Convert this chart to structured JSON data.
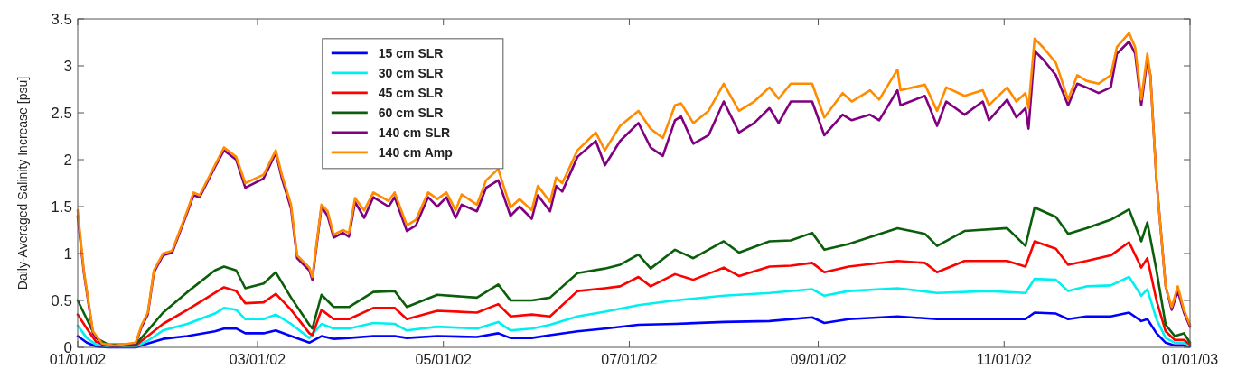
{
  "chart_data": {
    "type": "line",
    "ylabel": "Daily-Averaged Salinity Increase [psu]",
    "xlim": [
      "2002-01-01",
      "2003-01-01"
    ],
    "xticks": [
      {
        "value": "2002-01-01",
        "label": "01/01/02"
      },
      {
        "value": "2002-03-01",
        "label": "03/01/02"
      },
      {
        "value": "2002-05-01",
        "label": "05/01/02"
      },
      {
        "value": "2002-07-01",
        "label": "07/01/02"
      },
      {
        "value": "2002-09-01",
        "label": "09/01/02"
      },
      {
        "value": "2002-11-01",
        "label": "11/01/02"
      },
      {
        "value": "2003-01-01",
        "label": "01/01/03"
      }
    ],
    "ylim": [
      0,
      3.5
    ],
    "yticks": [
      0,
      0.5,
      1,
      1.5,
      2,
      2.5,
      3,
      3.5
    ],
    "grid": false,
    "legend": "top left",
    "marker": "none",
    "line_style": "solid",
    "x": [
      "2002-01-01",
      "2002-01-03",
      "2002-01-06",
      "2002-01-09",
      "2002-01-13",
      "2002-01-20",
      "2002-01-22",
      "2002-01-24",
      "2002-01-26",
      "2002-01-29",
      "2002-02-01",
      "2002-02-06",
      "2002-02-08",
      "2002-02-10",
      "2002-02-15",
      "2002-02-18",
      "2002-02-22",
      "2002-02-25",
      "2002-03-03",
      "2002-03-07",
      "2002-03-09",
      "2002-03-12",
      "2002-03-14",
      "2002-03-18",
      "2002-03-19",
      "2002-03-22",
      "2002-03-24",
      "2002-03-26",
      "2002-03-29",
      "2002-03-31",
      "2002-04-02",
      "2002-04-05",
      "2002-04-08",
      "2002-04-13",
      "2002-04-15",
      "2002-04-19",
      "2002-04-22",
      "2002-04-26",
      "2002-04-29",
      "2002-05-02",
      "2002-05-05",
      "2002-05-07",
      "2002-05-12",
      "2002-05-15",
      "2002-05-19",
      "2002-05-23",
      "2002-05-26",
      "2002-05-30",
      "2002-06-01",
      "2002-06-05",
      "2002-06-07",
      "2002-06-09",
      "2002-06-14",
      "2002-06-20",
      "2002-06-23",
      "2002-06-28",
      "2002-07-04",
      "2002-07-08",
      "2002-07-12",
      "2002-07-16",
      "2002-07-18",
      "2002-07-22",
      "2002-07-27",
      "2002-08-01",
      "2002-08-06",
      "2002-08-11",
      "2002-08-16",
      "2002-08-19",
      "2002-08-23",
      "2002-08-30",
      "2002-09-03",
      "2002-09-09",
      "2002-09-12",
      "2002-09-18",
      "2002-09-21",
      "2002-09-27",
      "2002-09-28",
      "2002-10-06",
      "2002-10-10",
      "2002-10-13",
      "2002-10-19",
      "2002-10-25",
      "2002-10-27",
      "2002-11-02",
      "2002-11-05",
      "2002-11-08",
      "2002-11-09",
      "2002-11-11",
      "2002-11-14",
      "2002-11-18",
      "2002-11-22",
      "2002-11-25",
      "2002-11-28",
      "2002-12-02",
      "2002-12-06",
      "2002-12-08",
      "2002-12-12",
      "2002-12-14",
      "2002-12-16",
      "2002-12-18",
      "2002-12-19",
      "2002-12-21",
      "2002-12-24",
      "2002-12-26",
      "2002-12-28",
      "2002-12-30",
      "2003-01-01"
    ],
    "series": [
      {
        "name": "15 cm SLR",
        "color": "#0000ff",
        "x": [
          "2002-01-01",
          "2002-01-04",
          "2002-01-07",
          "2002-01-11",
          "2002-01-20",
          "2002-01-24",
          "2002-01-29",
          "2002-02-06",
          "2002-02-15",
          "2002-02-18",
          "2002-02-22",
          "2002-02-25",
          "2002-03-03",
          "2002-03-07",
          "2002-03-12",
          "2002-03-18",
          "2002-03-22",
          "2002-03-26",
          "2002-03-31",
          "2002-04-08",
          "2002-04-15",
          "2002-04-19",
          "2002-04-29",
          "2002-05-12",
          "2002-05-19",
          "2002-05-23",
          "2002-05-30",
          "2002-06-05",
          "2002-06-14",
          "2002-06-23",
          "2002-07-04",
          "2002-07-16",
          "2002-08-01",
          "2002-08-16",
          "2002-08-30",
          "2002-09-03",
          "2002-09-11",
          "2002-09-27",
          "2002-10-10",
          "2002-10-27",
          "2002-11-08",
          "2002-11-11",
          "2002-11-18",
          "2002-11-22",
          "2002-11-28",
          "2002-12-06",
          "2002-12-12",
          "2002-12-16",
          "2002-12-18",
          "2002-12-21",
          "2002-12-24",
          "2002-12-27",
          "2002-12-30",
          "2003-01-01"
        ],
        "values": [
          0.12,
          0.05,
          0.01,
          0,
          0,
          0.04,
          0.09,
          0.12,
          0.17,
          0.2,
          0.2,
          0.15,
          0.15,
          0.18,
          0.12,
          0.05,
          0.12,
          0.09,
          0.1,
          0.12,
          0.12,
          0.1,
          0.12,
          0.11,
          0.15,
          0.1,
          0.1,
          0.13,
          0.17,
          0.2,
          0.24,
          0.25,
          0.27,
          0.28,
          0.32,
          0.26,
          0.3,
          0.33,
          0.3,
          0.3,
          0.3,
          0.37,
          0.36,
          0.3,
          0.33,
          0.33,
          0.37,
          0.28,
          0.3,
          0.15,
          0.05,
          0.02,
          0.02,
          0.01
        ]
      },
      {
        "name": "30 cm SLR",
        "color": "#00f0f0",
        "x": [
          "2002-01-01",
          "2002-01-04",
          "2002-01-07",
          "2002-01-11",
          "2002-01-20",
          "2002-01-24",
          "2002-01-29",
          "2002-02-06",
          "2002-02-15",
          "2002-02-18",
          "2002-02-22",
          "2002-02-25",
          "2002-03-03",
          "2002-03-07",
          "2002-03-12",
          "2002-03-18",
          "2002-03-22",
          "2002-03-26",
          "2002-03-31",
          "2002-04-08",
          "2002-04-15",
          "2002-04-19",
          "2002-04-29",
          "2002-05-12",
          "2002-05-19",
          "2002-05-23",
          "2002-05-30",
          "2002-06-05",
          "2002-06-14",
          "2002-06-23",
          "2002-07-04",
          "2002-07-16",
          "2002-08-01",
          "2002-08-16",
          "2002-08-30",
          "2002-09-03",
          "2002-09-11",
          "2002-09-27",
          "2002-10-10",
          "2002-10-27",
          "2002-11-08",
          "2002-11-11",
          "2002-11-18",
          "2002-11-22",
          "2002-11-28",
          "2002-12-06",
          "2002-12-12",
          "2002-12-16",
          "2002-12-18",
          "2002-12-21",
          "2002-12-24",
          "2002-12-27",
          "2002-12-30",
          "2003-01-01"
        ],
        "values": [
          0.23,
          0.1,
          0.03,
          0.01,
          0.01,
          0.07,
          0.18,
          0.25,
          0.36,
          0.42,
          0.4,
          0.3,
          0.3,
          0.35,
          0.25,
          0.1,
          0.25,
          0.2,
          0.2,
          0.26,
          0.25,
          0.18,
          0.22,
          0.2,
          0.27,
          0.18,
          0.2,
          0.24,
          0.33,
          0.38,
          0.45,
          0.5,
          0.55,
          0.58,
          0.62,
          0.55,
          0.6,
          0.63,
          0.58,
          0.6,
          0.58,
          0.73,
          0.72,
          0.6,
          0.65,
          0.66,
          0.75,
          0.55,
          0.62,
          0.3,
          0.1,
          0.05,
          0.05,
          0.02
        ]
      },
      {
        "name": "45 cm SLR",
        "color": "#ff0000",
        "x": [
          "2002-01-01",
          "2002-01-04",
          "2002-01-07",
          "2002-01-11",
          "2002-01-20",
          "2002-01-24",
          "2002-01-29",
          "2002-02-06",
          "2002-02-15",
          "2002-02-18",
          "2002-02-22",
          "2002-02-25",
          "2002-03-03",
          "2002-03-07",
          "2002-03-12",
          "2002-03-18",
          "2002-03-19",
          "2002-03-22",
          "2002-03-26",
          "2002-03-31",
          "2002-04-08",
          "2002-04-15",
          "2002-04-19",
          "2002-04-29",
          "2002-05-12",
          "2002-05-19",
          "2002-05-23",
          "2002-05-30",
          "2002-06-05",
          "2002-06-14",
          "2002-06-23",
          "2002-06-28",
          "2002-07-04",
          "2002-07-08",
          "2002-07-16",
          "2002-07-22",
          "2002-08-01",
          "2002-08-06",
          "2002-08-16",
          "2002-08-23",
          "2002-08-30",
          "2002-09-03",
          "2002-09-11",
          "2002-09-27",
          "2002-10-06",
          "2002-10-10",
          "2002-10-19",
          "2002-11-02",
          "2002-11-08",
          "2002-11-11",
          "2002-11-18",
          "2002-11-22",
          "2002-11-28",
          "2002-12-06",
          "2002-12-12",
          "2002-12-16",
          "2002-12-18",
          "2002-12-21",
          "2002-12-24",
          "2002-12-27",
          "2002-12-30",
          "2003-01-01"
        ],
        "values": [
          0.35,
          0.2,
          0.06,
          0.02,
          0.02,
          0.12,
          0.25,
          0.4,
          0.58,
          0.64,
          0.6,
          0.47,
          0.48,
          0.57,
          0.4,
          0.15,
          0.13,
          0.4,
          0.3,
          0.3,
          0.42,
          0.42,
          0.3,
          0.39,
          0.37,
          0.46,
          0.33,
          0.35,
          0.33,
          0.6,
          0.63,
          0.65,
          0.75,
          0.65,
          0.78,
          0.72,
          0.85,
          0.76,
          0.86,
          0.87,
          0.9,
          0.8,
          0.86,
          0.92,
          0.9,
          0.8,
          0.92,
          0.92,
          0.86,
          1.13,
          1.05,
          0.88,
          0.92,
          0.98,
          1.12,
          0.85,
          0.95,
          0.5,
          0.17,
          0.08,
          0.08,
          0.03
        ]
      },
      {
        "name": "60 cm SLR",
        "color": "#0b5e0b",
        "x": [
          "2002-01-01",
          "2002-01-04",
          "2002-01-07",
          "2002-01-11",
          "2002-01-20",
          "2002-01-24",
          "2002-01-29",
          "2002-02-06",
          "2002-02-15",
          "2002-02-18",
          "2002-02-22",
          "2002-02-25",
          "2002-03-03",
          "2002-03-07",
          "2002-03-12",
          "2002-03-18",
          "2002-03-19",
          "2002-03-22",
          "2002-03-26",
          "2002-03-31",
          "2002-04-08",
          "2002-04-15",
          "2002-04-19",
          "2002-04-29",
          "2002-05-12",
          "2002-05-19",
          "2002-05-23",
          "2002-05-30",
          "2002-06-05",
          "2002-06-14",
          "2002-06-23",
          "2002-06-28",
          "2002-07-04",
          "2002-07-08",
          "2002-07-16",
          "2002-07-22",
          "2002-08-01",
          "2002-08-06",
          "2002-08-16",
          "2002-08-23",
          "2002-08-30",
          "2002-09-03",
          "2002-09-11",
          "2002-09-27",
          "2002-10-06",
          "2002-10-10",
          "2002-10-19",
          "2002-11-02",
          "2002-11-08",
          "2002-11-11",
          "2002-11-18",
          "2002-11-22",
          "2002-11-28",
          "2002-12-06",
          "2002-12-12",
          "2002-12-16",
          "2002-12-18",
          "2002-12-21",
          "2002-12-24",
          "2002-12-27",
          "2002-12-30",
          "2003-01-01"
        ],
        "values": [
          0.5,
          0.3,
          0.1,
          0.03,
          0.03,
          0.18,
          0.37,
          0.59,
          0.82,
          0.86,
          0.82,
          0.63,
          0.68,
          0.8,
          0.53,
          0.24,
          0.2,
          0.56,
          0.43,
          0.43,
          0.59,
          0.6,
          0.43,
          0.56,
          0.53,
          0.67,
          0.5,
          0.5,
          0.53,
          0.79,
          0.84,
          0.88,
          0.99,
          0.84,
          1.04,
          0.95,
          1.13,
          1.01,
          1.13,
          1.14,
          1.22,
          1.04,
          1.1,
          1.27,
          1.21,
          1.08,
          1.24,
          1.27,
          1.08,
          1.49,
          1.39,
          1.21,
          1.27,
          1.36,
          1.47,
          1.13,
          1.33,
          0.82,
          0.24,
          0.12,
          0.15,
          0.05
        ]
      },
      {
        "name": "140 cm SLR",
        "color": "#800080",
        "values": [
          1.4,
          0.8,
          0.15,
          0.03,
          0.01,
          0.04,
          0.22,
          0.35,
          0.8,
          0.98,
          1.01,
          1.44,
          1.62,
          1.6,
          1.92,
          2.1,
          2.0,
          1.7,
          1.8,
          2.07,
          1.8,
          1.48,
          0.95,
          0.82,
          0.72,
          1.5,
          1.4,
          1.17,
          1.22,
          1.18,
          1.55,
          1.38,
          1.6,
          1.5,
          1.6,
          1.24,
          1.3,
          1.6,
          1.5,
          1.6,
          1.38,
          1.52,
          1.45,
          1.7,
          1.78,
          1.4,
          1.5,
          1.37,
          1.62,
          1.45,
          1.72,
          1.66,
          2.03,
          2.2,
          1.94,
          2.2,
          2.39,
          2.13,
          2.04,
          2.42,
          2.46,
          2.17,
          2.26,
          2.62,
          2.29,
          2.39,
          2.55,
          2.39,
          2.62,
          2.62,
          2.26,
          2.48,
          2.42,
          2.48,
          2.42,
          2.74,
          2.58,
          2.68,
          2.36,
          2.62,
          2.48,
          2.62,
          2.42,
          2.64,
          2.45,
          2.55,
          2.33,
          3.16,
          3.06,
          2.9,
          2.58,
          2.81,
          2.77,
          2.71,
          2.77,
          3.13,
          3.26,
          3.13,
          2.58,
          3.07,
          2.9,
          1.78,
          0.65,
          0.4,
          0.6,
          0.37,
          0.22
        ]
      },
      {
        "name": "140 cm Amp",
        "color": "#ff8c00",
        "values": [
          1.46,
          0.82,
          0.17,
          0.04,
          0.02,
          0.05,
          0.24,
          0.37,
          0.82,
          1.0,
          1.03,
          1.46,
          1.65,
          1.62,
          1.94,
          2.13,
          2.03,
          1.75,
          1.84,
          2.1,
          1.84,
          1.52,
          0.98,
          0.85,
          0.75,
          1.52,
          1.45,
          1.2,
          1.25,
          1.22,
          1.59,
          1.46,
          1.65,
          1.56,
          1.65,
          1.3,
          1.36,
          1.65,
          1.58,
          1.65,
          1.46,
          1.63,
          1.52,
          1.78,
          1.9,
          1.49,
          1.58,
          1.46,
          1.72,
          1.55,
          1.81,
          1.75,
          2.1,
          2.29,
          2.1,
          2.36,
          2.52,
          2.33,
          2.23,
          2.58,
          2.6,
          2.39,
          2.52,
          2.81,
          2.52,
          2.62,
          2.77,
          2.65,
          2.81,
          2.81,
          2.45,
          2.71,
          2.62,
          2.74,
          2.64,
          2.96,
          2.74,
          2.8,
          2.52,
          2.77,
          2.68,
          2.74,
          2.58,
          2.77,
          2.62,
          2.71,
          2.55,
          3.29,
          3.19,
          3.03,
          2.64,
          2.9,
          2.84,
          2.81,
          2.9,
          3.2,
          3.35,
          3.2,
          2.64,
          3.13,
          2.9,
          1.78,
          0.65,
          0.43,
          0.65,
          0.4,
          0.24
        ]
      }
    ]
  }
}
